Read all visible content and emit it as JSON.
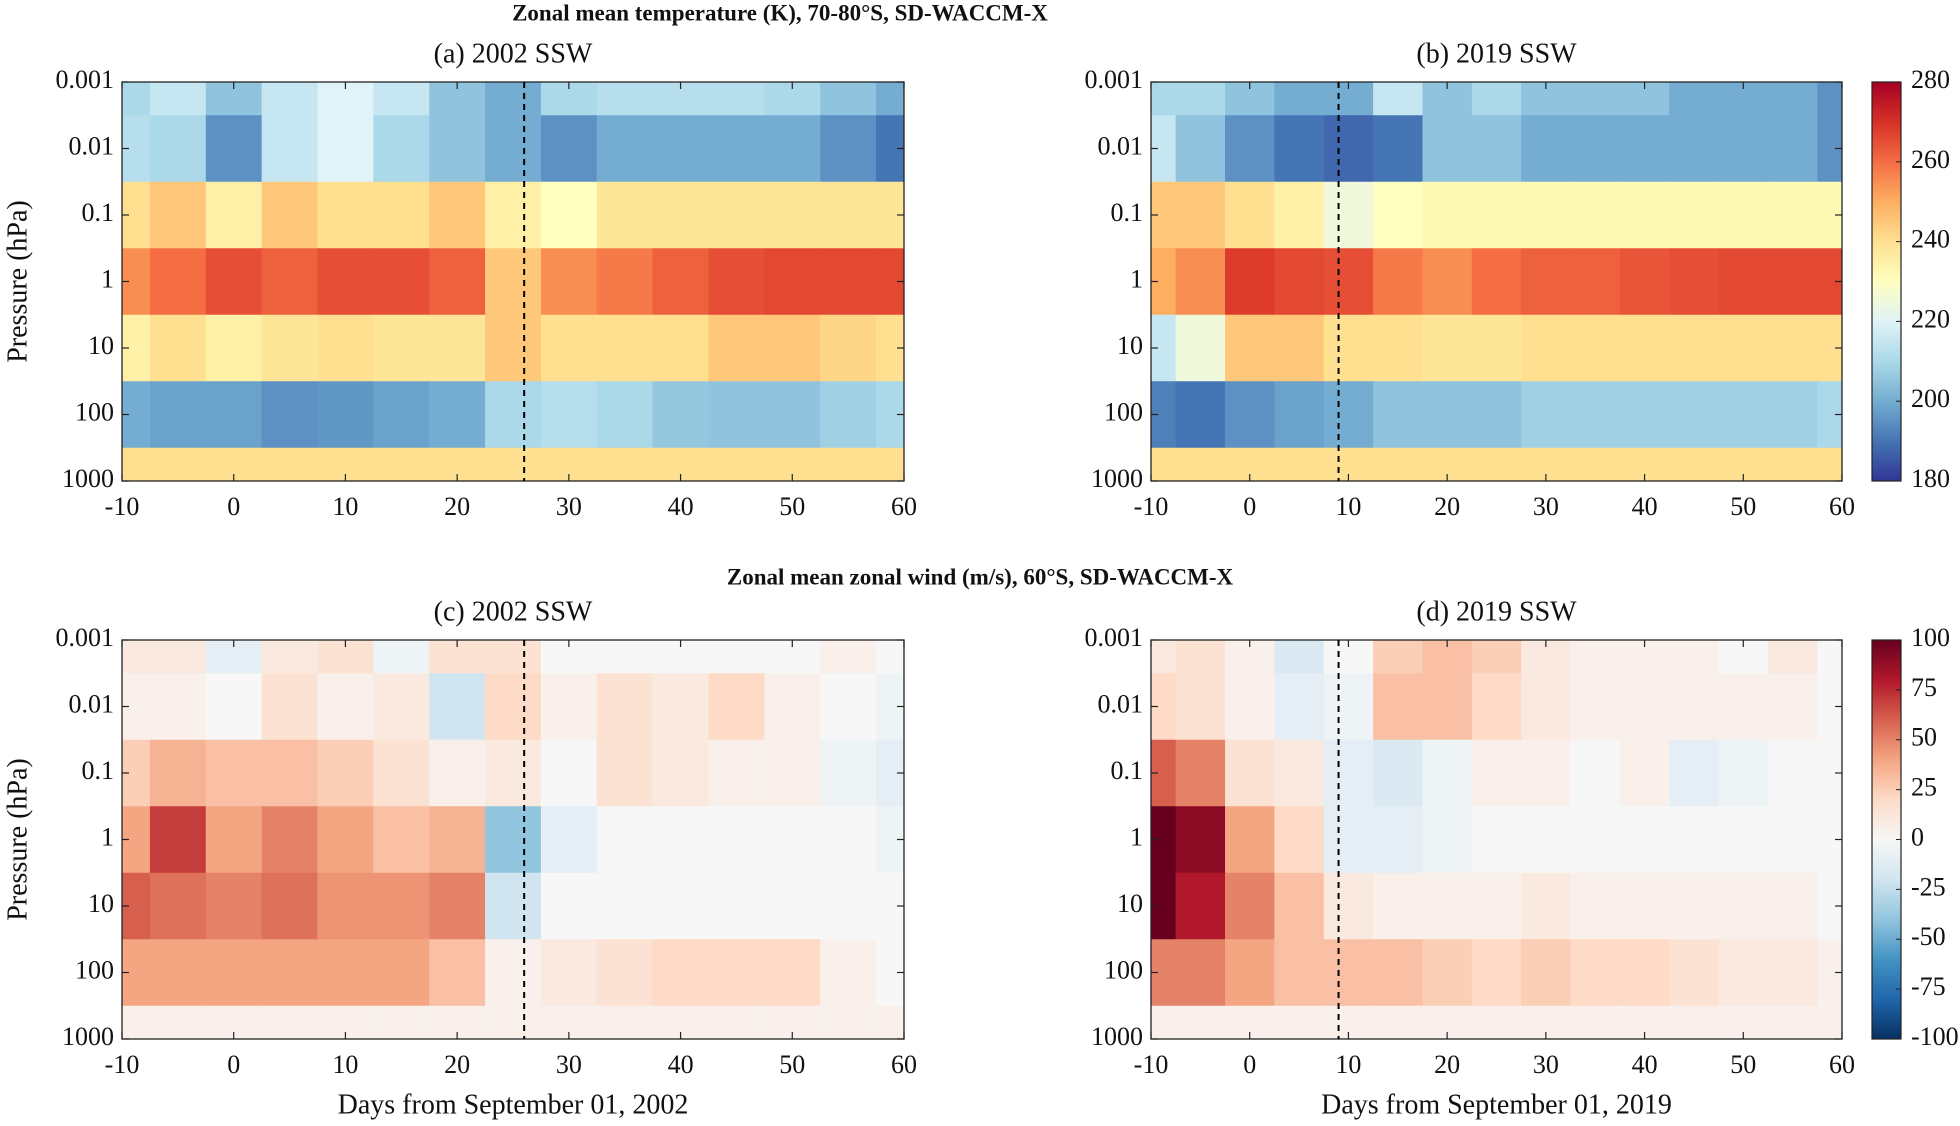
{
  "chart_data": [
    {
      "type": "heatmap",
      "suptitle": "Zonal mean temperature (K), 70-80°S, SD-WACCM-X",
      "title": "(a) 2002 SSW",
      "ylabel": "Pressure (hPa)",
      "x": [
        -10,
        -5,
        0,
        5,
        10,
        15,
        20,
        25,
        30,
        35,
        40,
        45,
        50,
        55,
        60
      ],
      "y": [
        0.001,
        0.01,
        0.1,
        1,
        10,
        100,
        1000
      ],
      "z": [
        [
          210,
          215,
          205,
          215,
          220,
          215,
          205,
          200,
          210,
          212,
          212,
          212,
          210,
          205,
          200
        ],
        [
          212,
          210,
          195,
          215,
          220,
          210,
          205,
          200,
          195,
          200,
          200,
          200,
          200,
          195,
          190
        ],
        [
          240,
          245,
          235,
          245,
          240,
          240,
          245,
          235,
          230,
          238,
          238,
          238,
          238,
          238,
          238
        ],
        [
          255,
          260,
          265,
          262,
          265,
          265,
          262,
          245,
          255,
          258,
          262,
          265,
          266,
          266,
          266
        ],
        [
          235,
          240,
          235,
          238,
          240,
          238,
          238,
          245,
          240,
          240,
          240,
          245,
          245,
          242,
          240
        ],
        [
          200,
          198,
          198,
          195,
          196,
          198,
          200,
          210,
          212,
          210,
          206,
          205,
          205,
          208,
          210
        ],
        [
          240,
          240,
          240,
          240,
          240,
          240,
          240,
          240,
          240,
          240,
          240,
          240,
          240,
          240,
          240
        ]
      ],
      "xlim": [
        -10,
        60
      ],
      "xticks": [
        -10,
        0,
        10,
        20,
        30,
        40,
        50,
        60
      ],
      "ylim": [
        1000,
        0.001
      ],
      "ylog": true,
      "yticks": [
        0.001,
        0.01,
        0.1,
        1,
        10,
        100,
        1000
      ],
      "ssw_day": 26,
      "clim": [
        180,
        280
      ],
      "colormap": [
        "#313695",
        "#4575b4",
        "#74add1",
        "#abd9e9",
        "#e0f3f8",
        "#ffffbf",
        "#fee090",
        "#fdae61",
        "#f46d43",
        "#d73027",
        "#a50026"
      ]
    },
    {
      "type": "heatmap",
      "title": "(b) 2019 SSW",
      "x": [
        -10,
        -5,
        0,
        5,
        10,
        15,
        20,
        25,
        30,
        35,
        40,
        45,
        50,
        55,
        60
      ],
      "y": [
        0.001,
        0.01,
        0.1,
        1,
        10,
        100,
        1000
      ],
      "z": [
        [
          210,
          210,
          205,
          200,
          200,
          215,
          205,
          210,
          205,
          205,
          205,
          200,
          200,
          200,
          195
        ],
        [
          215,
          205,
          195,
          190,
          188,
          190,
          205,
          205,
          200,
          200,
          200,
          200,
          200,
          200,
          195
        ],
        [
          245,
          245,
          240,
          235,
          225,
          230,
          232,
          232,
          232,
          232,
          232,
          232,
          232,
          232,
          232
        ],
        [
          250,
          255,
          268,
          266,
          265,
          258,
          255,
          260,
          262,
          262,
          264,
          265,
          266,
          266,
          266
        ],
        [
          215,
          225,
          245,
          245,
          240,
          240,
          238,
          238,
          240,
          240,
          240,
          240,
          240,
          240,
          240
        ],
        [
          192,
          190,
          195,
          198,
          200,
          205,
          205,
          205,
          208,
          208,
          208,
          208,
          208,
          208,
          210
        ],
        [
          240,
          240,
          240,
          240,
          240,
          240,
          240,
          240,
          240,
          240,
          240,
          240,
          240,
          240,
          240
        ]
      ],
      "xlim": [
        -10,
        60
      ],
      "xticks": [
        -10,
        0,
        10,
        20,
        30,
        40,
        50,
        60
      ],
      "ylim": [
        1000,
        0.001
      ],
      "ylog": true,
      "yticks": [
        0.001,
        0.01,
        0.1,
        1,
        10,
        100,
        1000
      ],
      "ssw_day": 9,
      "clim": [
        180,
        280
      ],
      "colormap": [
        "#313695",
        "#4575b4",
        "#74add1",
        "#abd9e9",
        "#e0f3f8",
        "#ffffbf",
        "#fee090",
        "#fdae61",
        "#f46d43",
        "#d73027",
        "#a50026"
      ],
      "colorbar": {
        "lim": [
          180,
          280
        ],
        "ticks": [
          180,
          200,
          220,
          240,
          260,
          280
        ]
      }
    },
    {
      "type": "heatmap",
      "suptitle": "Zonal mean zonal wind (m/s), 60°S, SD-WACCM-X",
      "title": "(c) 2002 SSW",
      "ylabel": "Pressure (hPa)",
      "xlabel": "Days from September 01, 2002",
      "x": [
        -10,
        -5,
        0,
        5,
        10,
        15,
        20,
        25,
        30,
        35,
        40,
        45,
        50,
        55,
        60
      ],
      "y": [
        0.001,
        0.01,
        0.1,
        1,
        10,
        100,
        1000
      ],
      "z": [
        [
          10,
          10,
          -10,
          10,
          15,
          -5,
          15,
          15,
          0,
          0,
          0,
          0,
          0,
          5,
          0
        ],
        [
          5,
          5,
          0,
          15,
          5,
          10,
          -20,
          20,
          5,
          15,
          10,
          20,
          5,
          0,
          -5
        ],
        [
          25,
          35,
          30,
          30,
          25,
          15,
          5,
          10,
          0,
          15,
          10,
          5,
          5,
          -5,
          -10
        ],
        [
          40,
          70,
          40,
          50,
          40,
          30,
          35,
          -40,
          -10,
          0,
          0,
          0,
          0,
          0,
          -5
        ],
        [
          60,
          55,
          50,
          55,
          45,
          45,
          50,
          -20,
          0,
          0,
          0,
          0,
          0,
          0,
          0
        ],
        [
          40,
          40,
          40,
          40,
          40,
          40,
          30,
          5,
          10,
          15,
          20,
          20,
          20,
          5,
          0
        ],
        [
          5,
          5,
          5,
          5,
          5,
          5,
          5,
          5,
          5,
          5,
          5,
          5,
          5,
          5,
          5
        ]
      ],
      "xlim": [
        -10,
        60
      ],
      "xticks": [
        -10,
        0,
        10,
        20,
        30,
        40,
        50,
        60
      ],
      "ylim": [
        1000,
        0.001
      ],
      "ylog": true,
      "yticks": [
        0.001,
        0.01,
        0.1,
        1,
        10,
        100,
        1000
      ],
      "ssw_day": 26,
      "clim": [
        -100,
        100
      ],
      "colormap": [
        "#053061",
        "#2166ac",
        "#4393c3",
        "#92c5de",
        "#d1e5f0",
        "#f7f7f7",
        "#fddbc7",
        "#f4a582",
        "#d6604d",
        "#b2182b",
        "#67001f"
      ]
    },
    {
      "type": "heatmap",
      "title": "(d) 2019 SSW",
      "xlabel": "Days from September 01, 2019",
      "x": [
        -10,
        -5,
        0,
        5,
        10,
        15,
        20,
        25,
        30,
        35,
        40,
        45,
        50,
        55,
        60
      ],
      "y": [
        0.001,
        0.01,
        0.1,
        1,
        10,
        100,
        1000
      ],
      "z": [
        [
          10,
          15,
          5,
          -15,
          0,
          25,
          30,
          25,
          10,
          5,
          5,
          5,
          0,
          10,
          0
        ],
        [
          20,
          15,
          5,
          -10,
          -5,
          30,
          30,
          20,
          10,
          5,
          5,
          5,
          5,
          5,
          0
        ],
        [
          60,
          50,
          15,
          10,
          -10,
          -15,
          -5,
          5,
          5,
          0,
          5,
          -10,
          -5,
          0,
          0
        ],
        [
          100,
          90,
          40,
          20,
          -10,
          -10,
          -5,
          0,
          0,
          0,
          0,
          0,
          0,
          0,
          0
        ],
        [
          100,
          80,
          50,
          30,
          10,
          5,
          5,
          5,
          10,
          5,
          5,
          5,
          5,
          5,
          0
        ],
        [
          50,
          50,
          40,
          30,
          30,
          30,
          25,
          20,
          25,
          20,
          20,
          15,
          10,
          10,
          5
        ],
        [
          5,
          5,
          5,
          5,
          5,
          5,
          5,
          5,
          5,
          5,
          5,
          5,
          5,
          5,
          5
        ]
      ],
      "xlim": [
        -10,
        60
      ],
      "xticks": [
        -10,
        0,
        10,
        20,
        30,
        40,
        50,
        60
      ],
      "ylim": [
        1000,
        0.001
      ],
      "ylog": true,
      "yticks": [
        0.001,
        0.01,
        0.1,
        1,
        10,
        100,
        1000
      ],
      "ssw_day": 9,
      "clim": [
        -100,
        100
      ],
      "colormap": [
        "#053061",
        "#2166ac",
        "#4393c3",
        "#92c5de",
        "#d1e5f0",
        "#f7f7f7",
        "#fddbc7",
        "#f4a582",
        "#d6604d",
        "#b2182b",
        "#67001f"
      ],
      "colorbar": {
        "lim": [
          -100,
          100
        ],
        "ticks": [
          -100,
          -75,
          -50,
          -25,
          0,
          25,
          50,
          75,
          100
        ]
      }
    }
  ]
}
